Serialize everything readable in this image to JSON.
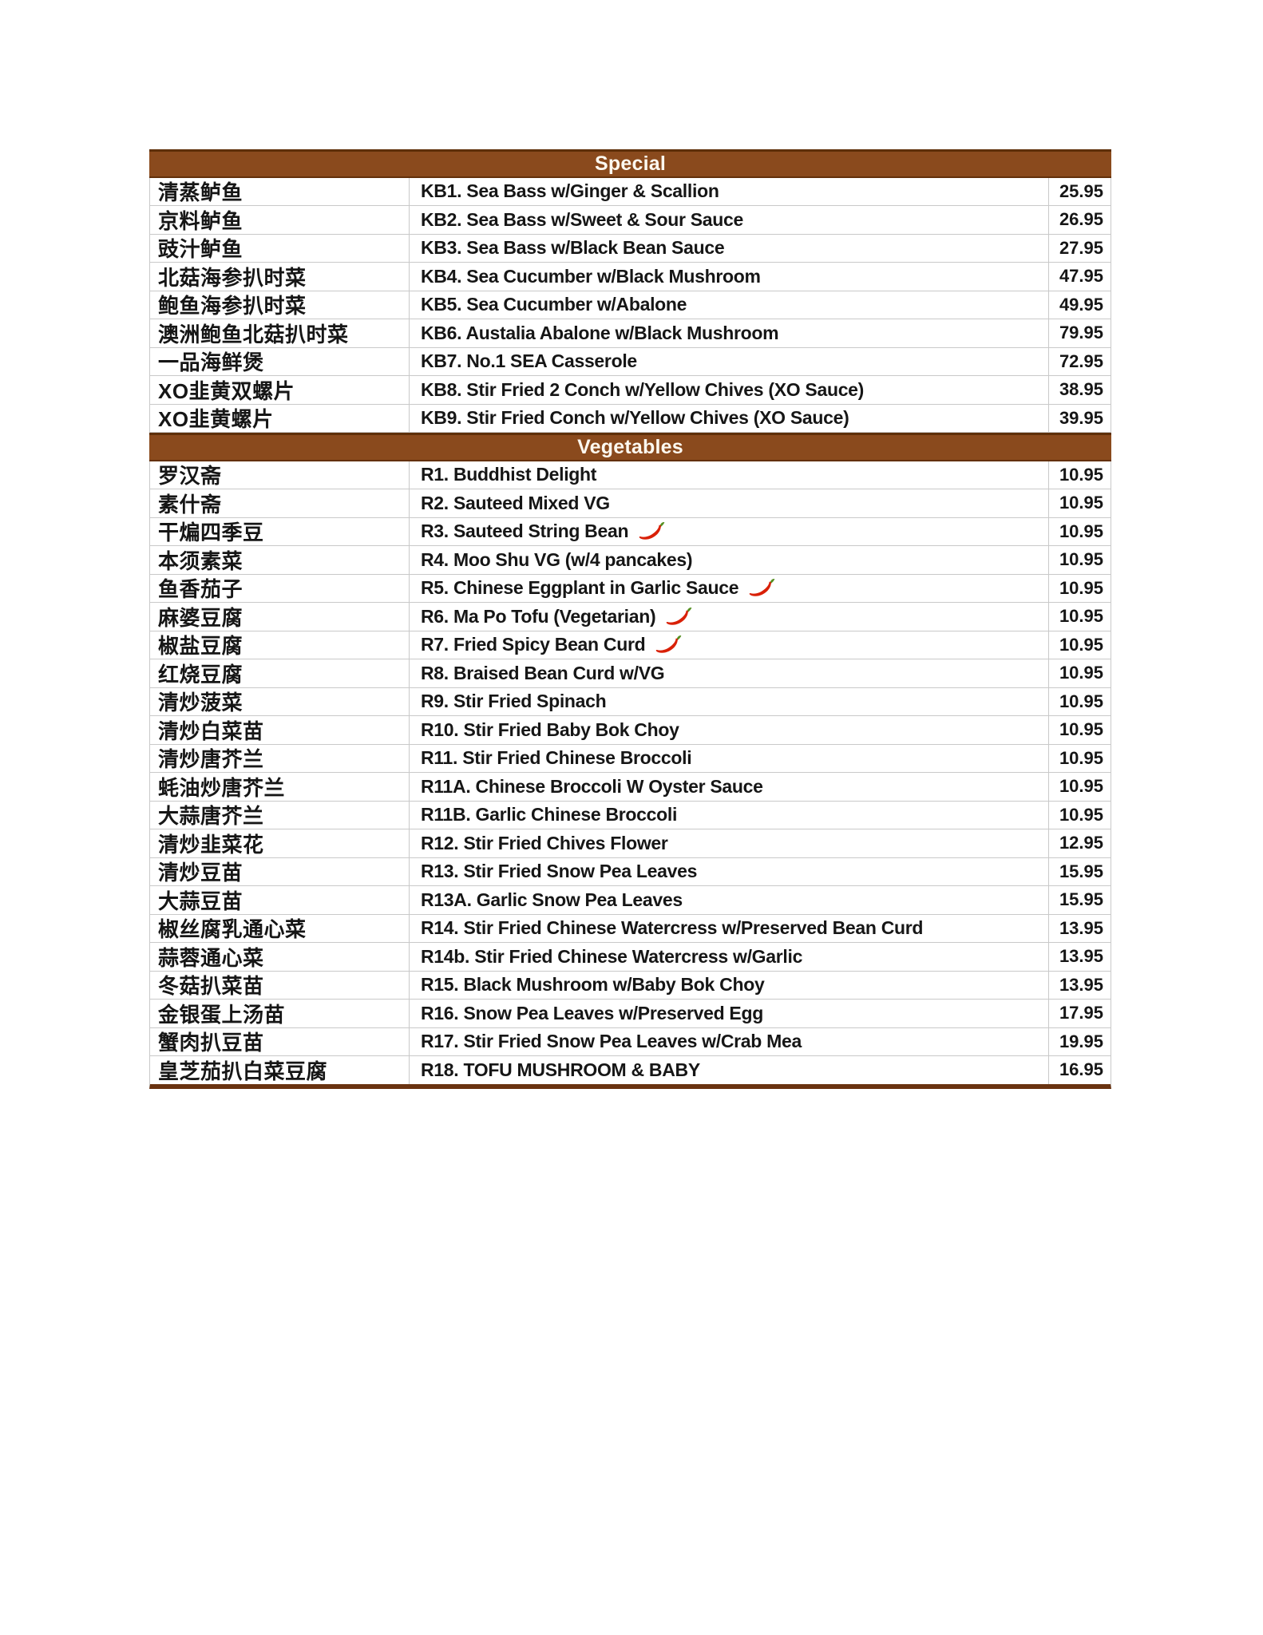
{
  "page": {
    "background": "#ffffff"
  },
  "table": {
    "header_fill": "#8a4a1d",
    "header_border_dark": "#5e2f08",
    "bottom_bar_brown": "#6a3310",
    "gridline_color": "#c9c9c9",
    "text_color": "#161616",
    "header_text_color": "#fdf9f0",
    "chili_red": "#d92007",
    "chili_stem_green": "#569022"
  },
  "sections": [
    {
      "title": "Special",
      "items": [
        {
          "cn": "清蒸鲈鱼",
          "en": "KB1. Sea Bass w/Ginger & Scallion",
          "price": "25.95",
          "spicy": false
        },
        {
          "cn": "京料鲈鱼",
          "en": "KB2. Sea Bass w/Sweet & Sour Sauce",
          "price": "26.95",
          "spicy": false
        },
        {
          "cn": "豉汁鲈鱼",
          "en": "KB3. Sea Bass w/Black Bean Sauce",
          "price": "27.95",
          "spicy": false
        },
        {
          "cn": "北菇海参扒时菜",
          "en": "KB4. Sea Cucumber w/Black Mushroom",
          "price": "47.95",
          "spicy": false
        },
        {
          "cn": "鲍鱼海参扒时菜",
          "en": "KB5. Sea Cucumber w/Abalone",
          "price": "49.95",
          "spicy": false
        },
        {
          "cn": "澳洲鲍鱼北菇扒时菜",
          "en": "KB6. Austalia Abalone w/Black Mushroom",
          "price": "79.95",
          "spicy": false
        },
        {
          "cn": "一品海鲜煲",
          "en": "KB7. No.1 SEA Casserole",
          "price": "72.95",
          "spicy": false
        },
        {
          "cn": "XO韭黄双螺片",
          "en": "KB8. Stir Fried 2 Conch w/Yellow Chives (XO Sauce)",
          "price": "38.95",
          "spicy": false
        },
        {
          "cn": "XO韭黄螺片",
          "en": "KB9. Stir Fried Conch w/Yellow Chives (XO Sauce)",
          "price": "39.95",
          "spicy": false
        }
      ]
    },
    {
      "title": "Vegetables",
      "items": [
        {
          "cn": "罗汉斋",
          "en": "R1. Buddhist Delight",
          "price": "10.95",
          "spicy": false
        },
        {
          "cn": "素什斋",
          "en": "R2. Sauteed Mixed VG",
          "price": "10.95",
          "spicy": false
        },
        {
          "cn": "干煸四季豆",
          "en": "R3. Sauteed String Bean",
          "price": "10.95",
          "spicy": true
        },
        {
          "cn": "本须素菜",
          "en": "R4. Moo Shu VG (w/4 pancakes)",
          "price": "10.95",
          "spicy": false
        },
        {
          "cn": "鱼香茄子",
          "en": "R5. Chinese Eggplant in Garlic Sauce",
          "price": "10.95",
          "spicy": true
        },
        {
          "cn": "麻婆豆腐",
          "en": "R6. Ma Po Tofu (Vegetarian)",
          "price": "10.95",
          "spicy": true
        },
        {
          "cn": "椒盐豆腐",
          "en": "R7. Fried Spicy Bean Curd",
          "price": "10.95",
          "spicy": true
        },
        {
          "cn": "红烧豆腐",
          "en": "R8. Braised Bean Curd w/VG",
          "price": "10.95",
          "spicy": false
        },
        {
          "cn": "清炒菠菜",
          "en": "R9. Stir Fried Spinach",
          "price": "10.95",
          "spicy": false
        },
        {
          "cn": "清炒白菜苗",
          "en": "R10. Stir Fried Baby Bok Choy",
          "price": "10.95",
          "spicy": false
        },
        {
          "cn": "清炒唐芥兰",
          "en": "R11. Stir Fried Chinese Broccoli",
          "price": "10.95",
          "spicy": false
        },
        {
          "cn": "蚝油炒唐芥兰",
          "en": "R11A. Chinese Broccoli W Oyster Sauce",
          "price": "10.95",
          "spicy": false
        },
        {
          "cn": "大蒜唐芥兰",
          "en": "R11B. Garlic Chinese Broccoli",
          "price": "10.95",
          "spicy": false
        },
        {
          "cn": "清炒韭菜花",
          "en": "R12. Stir Fried Chives Flower",
          "price": "12.95",
          "spicy": false
        },
        {
          "cn": "清炒豆苗",
          "en": "R13. Stir Fried Snow Pea Leaves",
          "price": "15.95",
          "spicy": false
        },
        {
          "cn": "大蒜豆苗",
          "en": "R13A. Garlic Snow Pea Leaves",
          "price": "15.95",
          "spicy": false
        },
        {
          "cn": "椒丝腐乳通心菜",
          "en": "R14. Stir Fried Chinese Watercress w/Preserved Bean Curd",
          "price": "13.95",
          "spicy": false
        },
        {
          "cn": "蒜蓉通心菜",
          "en": "R14b. Stir Fried Chinese Watercress w/Garlic",
          "price": "13.95",
          "spicy": false
        },
        {
          "cn": "冬菇扒菜苗",
          "en": "R15. Black Mushroom w/Baby Bok Choy",
          "price": "13.95",
          "spicy": false
        },
        {
          "cn": "金银蛋上汤苗",
          "en": "R16. Snow Pea Leaves w/Preserved Egg",
          "price": "17.95",
          "spicy": false
        },
        {
          "cn": "蟹肉扒豆苗",
          "en": "R17. Stir Fried Snow Pea Leaves w/Crab Mea",
          "price": "19.95",
          "spicy": false
        },
        {
          "cn": "皇芝茄扒白菜豆腐",
          "en": "R18. TOFU MUSHROOM & BABY",
          "price": "16.95",
          "spicy": false
        }
      ]
    }
  ]
}
